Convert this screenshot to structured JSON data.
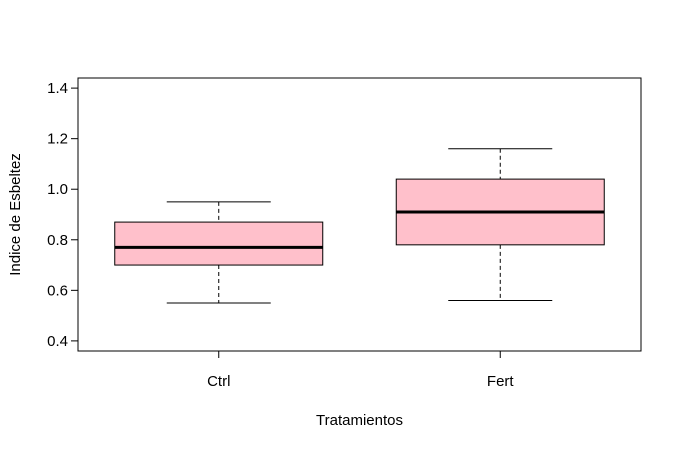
{
  "chart_data": {
    "type": "boxplot",
    "title": "",
    "xlabel": "Tratamientos",
    "ylabel": "Indice de Esbeltez",
    "ylim": [
      0.36,
      1.44
    ],
    "yticks": [
      0.4,
      0.6,
      0.8,
      1.0,
      1.2,
      1.4
    ],
    "ytick_labels": [
      "0.4",
      "0.6",
      "0.8",
      "1.0",
      "1.2",
      "1.4"
    ],
    "categories": [
      "Ctrl",
      "Fert"
    ],
    "boxes": [
      {
        "category": "Ctrl",
        "whisker_low": 0.55,
        "q1": 0.7,
        "median": 0.77,
        "q3": 0.87,
        "whisker_high": 0.95
      },
      {
        "category": "Fert",
        "whisker_low": 0.56,
        "q1": 0.78,
        "median": 0.91,
        "q3": 1.04,
        "whisker_high": 1.16
      }
    ],
    "box_fill": "#ffc0cb",
    "line_color": "#000000",
    "grid": false,
    "legend": "none"
  }
}
